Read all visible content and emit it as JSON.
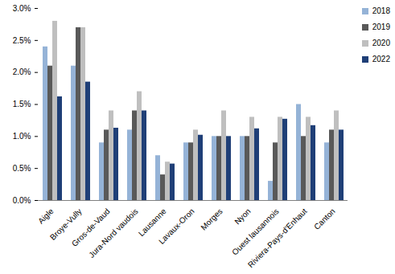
{
  "chart_data": {
    "type": "bar",
    "categories": [
      "Aigle",
      "Broye-Vully",
      "Gros-de-Vaud",
      "Jura-Nord vaudois",
      "Lausanne",
      "Lavaux-Oron",
      "Morges",
      "Nyon",
      "Ouest lausannois",
      "Riviera-Pays-d'Enhaut",
      "Canton"
    ],
    "series": [
      {
        "name": "2018",
        "color": "#95b3d7",
        "values": [
          2.4,
          2.1,
          0.9,
          1.1,
          0.7,
          0.9,
          1.0,
          1.0,
          0.3,
          1.5,
          0.9
        ]
      },
      {
        "name": "2019",
        "color": "#595959",
        "values": [
          2.1,
          2.7,
          1.1,
          1.4,
          0.4,
          0.9,
          1.0,
          1.0,
          0.9,
          1.0,
          1.1
        ]
      },
      {
        "name": "2020",
        "color": "#bfbfbf",
        "values": [
          2.8,
          2.7,
          1.4,
          1.7,
          0.6,
          1.1,
          1.4,
          1.3,
          1.3,
          1.3,
          1.4
        ]
      },
      {
        "name": "2022",
        "color": "#1f3f77",
        "values": [
          1.62,
          1.85,
          1.13,
          1.4,
          0.57,
          1.02,
          1.0,
          1.12,
          1.27,
          1.17,
          1.1
        ]
      }
    ],
    "ylim": [
      0,
      3
    ],
    "yticks": [
      {
        "value": 0,
        "label": "0.0%"
      },
      {
        "value": 0.5,
        "label": "0.5%"
      },
      {
        "value": 1,
        "label": "1.0%"
      },
      {
        "value": 1.5,
        "label": "1.5%"
      },
      {
        "value": 2,
        "label": "2.0%"
      },
      {
        "value": 2.5,
        "label": "2.5%"
      },
      {
        "value": 3,
        "label": "3.0%"
      }
    ],
    "grid": false,
    "legend": "right"
  }
}
